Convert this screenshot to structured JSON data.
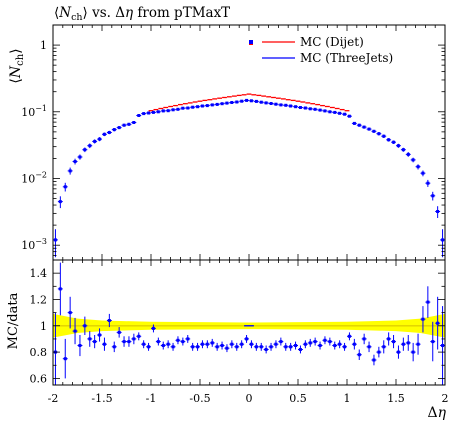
{
  "chart_data": {
    "type": "scatter",
    "title": "⟨N_ch⟩ vs. Δη from pTMaxT",
    "title_parts": {
      "prefix": "⟨",
      "var": "N",
      "sub": "ch",
      "mid": "⟩ vs. ",
      "delta_sym": "Δ",
      "eta_sym": "η",
      "suffix": " from pTMaxT"
    },
    "ylabel_parts": {
      "open": "⟨",
      "var": "N",
      "sub": "ch",
      "close": "⟩"
    },
    "xlabel_parts": {
      "delta_sym": "Δ",
      "eta_sym": "η"
    },
    "ratio_ylabel": "MC/data",
    "legend": {
      "position": "top-right",
      "entries": [
        {
          "name": "MC (Dijet)",
          "color": "#ff0000"
        },
        {
          "name": "MC (ThreeJets)",
          "color": "#0000ff"
        }
      ]
    },
    "colors": {
      "dijet": "#ff0000",
      "threejets": "#0000ff",
      "band": "#ffff00",
      "band_line": "#e0d000",
      "data": "#000000"
    },
    "x_range": [
      -2,
      2
    ],
    "y_range_log": [
      0.0006,
      2
    ],
    "y_log": true,
    "ratio_range": [
      0.55,
      1.5
    ],
    "x_ticks": [
      {
        "value": -2,
        "label": "-2"
      },
      {
        "value": -1.5,
        "label": "-1.5"
      },
      {
        "value": -1,
        "label": "-1"
      },
      {
        "value": -0.5,
        "label": "-0.5"
      },
      {
        "value": 0,
        "label": "0"
      },
      {
        "value": 0.5,
        "label": "0.5"
      },
      {
        "value": 1,
        "label": "1"
      },
      {
        "value": 1.5,
        "label": "1.5"
      },
      {
        "value": 2,
        "label": "2"
      }
    ],
    "y_ticks": [
      {
        "value": 1,
        "label": "1"
      },
      {
        "value": 0.1,
        "label": "10",
        "exp": "−1"
      },
      {
        "value": 0.01,
        "label": "10",
        "exp": "−2"
      },
      {
        "value": 0.001,
        "label": "10",
        "exp": "−3"
      }
    ],
    "ratio_ticks": [
      {
        "value": 0.6,
        "label": "0.6"
      },
      {
        "value": 0.8,
        "label": "0.8"
      },
      {
        "value": 1.0,
        "label": "1"
      },
      {
        "value": 1.2,
        "label": "1.2"
      },
      {
        "value": 1.4,
        "label": "1.4"
      }
    ],
    "dijet": {
      "x": [
        -1,
        -0.95,
        -0.9,
        -0.85,
        -0.8,
        -0.75,
        -0.7,
        -0.65,
        -0.6,
        -0.55,
        -0.5,
        -0.45,
        -0.4,
        -0.35,
        -0.3,
        -0.25,
        -0.2,
        -0.15,
        -0.1,
        -0.05,
        0,
        0.05,
        0.1,
        0.15,
        0.2,
        0.25,
        0.3,
        0.35,
        0.4,
        0.45,
        0.5,
        0.55,
        0.6,
        0.65,
        0.7,
        0.75,
        0.8,
        0.85,
        0.9,
        0.95,
        1
      ],
      "y": [
        0.104,
        0.108,
        0.112,
        0.116,
        0.12,
        0.124,
        0.128,
        0.132,
        0.136,
        0.14,
        0.144,
        0.148,
        0.152,
        0.156,
        0.16,
        0.164,
        0.168,
        0.172,
        0.176,
        0.18,
        0.184,
        0.18,
        0.176,
        0.172,
        0.168,
        0.164,
        0.16,
        0.156,
        0.152,
        0.148,
        0.144,
        0.14,
        0.136,
        0.132,
        0.128,
        0.124,
        0.12,
        0.116,
        0.112,
        0.108,
        0.104
      ]
    },
    "threejets": {
      "x": [
        -1.975,
        -1.925,
        -1.875,
        -1.825,
        -1.775,
        -1.725,
        -1.675,
        -1.625,
        -1.575,
        -1.525,
        -1.475,
        -1.425,
        -1.375,
        -1.325,
        -1.275,
        -1.225,
        -1.175,
        -1.125,
        -1.075,
        -1.025,
        -0.975,
        -0.925,
        -0.875,
        -0.825,
        -0.775,
        -0.725,
        -0.675,
        -0.625,
        -0.575,
        -0.525,
        -0.475,
        -0.425,
        -0.375,
        -0.325,
        -0.275,
        -0.225,
        -0.175,
        -0.125,
        -0.075,
        -0.025,
        0.025,
        0.075,
        0.125,
        0.175,
        0.225,
        0.275,
        0.325,
        0.375,
        0.425,
        0.475,
        0.525,
        0.575,
        0.625,
        0.675,
        0.725,
        0.775,
        0.825,
        0.875,
        0.925,
        0.975,
        1.025,
        1.075,
        1.125,
        1.175,
        1.225,
        1.275,
        1.325,
        1.375,
        1.425,
        1.475,
        1.525,
        1.575,
        1.625,
        1.675,
        1.725,
        1.775,
        1.825,
        1.875,
        1.925,
        1.975
      ],
      "y": [
        0.0012,
        0.0045,
        0.0075,
        0.013,
        0.018,
        0.021,
        0.027,
        0.031,
        0.036,
        0.039,
        0.046,
        0.049,
        0.054,
        0.058,
        0.063,
        0.065,
        0.069,
        0.088,
        0.094,
        0.096,
        0.098,
        0.1,
        0.103,
        0.104,
        0.107,
        0.109,
        0.113,
        0.114,
        0.117,
        0.119,
        0.122,
        0.124,
        0.127,
        0.129,
        0.132,
        0.135,
        0.138,
        0.14,
        0.144,
        0.148,
        0.146,
        0.143,
        0.139,
        0.136,
        0.133,
        0.13,
        0.127,
        0.125,
        0.122,
        0.119,
        0.116,
        0.114,
        0.111,
        0.109,
        0.106,
        0.103,
        0.1,
        0.098,
        0.095,
        0.092,
        0.086,
        0.067,
        0.063,
        0.059,
        0.055,
        0.051,
        0.047,
        0.043,
        0.038,
        0.035,
        0.031,
        0.027,
        0.023,
        0.019,
        0.015,
        0.012,
        0.0085,
        0.0055,
        0.0032,
        0.0012
      ],
      "yerr_frac": [
        0.45,
        0.2,
        0.15,
        0.12,
        0.1,
        0.09,
        0.08,
        0.08,
        0.07,
        0.07,
        0.06,
        0.06,
        0.06,
        0.05,
        0.05,
        0.05,
        0.05,
        0.04,
        0.04,
        0.04,
        0.04,
        0.04,
        0.04,
        0.04,
        0.04,
        0.04,
        0.04,
        0.04,
        0.04,
        0.04,
        0.04,
        0.04,
        0.04,
        0.04,
        0.04,
        0.04,
        0.04,
        0.04,
        0.04,
        0.04,
        0.04,
        0.04,
        0.04,
        0.04,
        0.04,
        0.04,
        0.04,
        0.04,
        0.04,
        0.04,
        0.04,
        0.04,
        0.04,
        0.04,
        0.04,
        0.04,
        0.04,
        0.04,
        0.04,
        0.04,
        0.04,
        0.05,
        0.05,
        0.05,
        0.05,
        0.05,
        0.06,
        0.06,
        0.06,
        0.06,
        0.07,
        0.07,
        0.08,
        0.08,
        0.09,
        0.1,
        0.12,
        0.15,
        0.2,
        0.45
      ]
    },
    "ratio_threejets": {
      "y": [
        0.8,
        1.28,
        0.75,
        1.1,
        0.96,
        0.85,
        1.0,
        0.9,
        0.88,
        0.93,
        0.86,
        1.04,
        0.84,
        0.95,
        0.88,
        0.88,
        0.9,
        0.92,
        0.86,
        0.84,
        0.98,
        0.88,
        0.85,
        0.86,
        0.84,
        0.89,
        0.88,
        0.9,
        0.84,
        0.84,
        0.86,
        0.86,
        0.87,
        0.84,
        0.85,
        0.83,
        0.86,
        0.84,
        0.86,
        0.9,
        0.86,
        0.84,
        0.84,
        0.82,
        0.84,
        0.86,
        0.88,
        0.84,
        0.84,
        0.85,
        0.82,
        0.86,
        0.87,
        0.88,
        0.85,
        0.89,
        0.88,
        0.85,
        0.86,
        0.84,
        0.92,
        0.86,
        0.78,
        0.9,
        0.84,
        0.74,
        0.8,
        0.84,
        0.9,
        0.88,
        0.8,
        0.86,
        0.87,
        0.8,
        0.86,
        1.05,
        1.18,
        0.88,
        1.02,
        0.85
      ],
      "yerr": [
        0.3,
        0.2,
        0.15,
        0.12,
        0.1,
        0.08,
        0.07,
        0.06,
        0.05,
        0.05,
        0.05,
        0.05,
        0.04,
        0.04,
        0.04,
        0.04,
        0.04,
        0.03,
        0.03,
        0.03,
        0.03,
        0.03,
        0.03,
        0.03,
        0.03,
        0.03,
        0.03,
        0.03,
        0.03,
        0.03,
        0.03,
        0.03,
        0.03,
        0.03,
        0.03,
        0.03,
        0.03,
        0.03,
        0.03,
        0.03,
        0.03,
        0.03,
        0.03,
        0.03,
        0.03,
        0.03,
        0.03,
        0.03,
        0.03,
        0.03,
        0.03,
        0.03,
        0.03,
        0.03,
        0.03,
        0.03,
        0.03,
        0.03,
        0.03,
        0.03,
        0.03,
        0.04,
        0.04,
        0.04,
        0.04,
        0.04,
        0.04,
        0.05,
        0.05,
        0.05,
        0.05,
        0.05,
        0.06,
        0.07,
        0.08,
        0.1,
        0.12,
        0.15,
        0.2,
        0.3
      ]
    },
    "ratio_dijet": {
      "x": [
        -0.025,
        0.025
      ],
      "y": [
        1.0,
        1.0
      ]
    },
    "band": {
      "x": [
        -2,
        -1.75,
        -1.5,
        -1,
        0,
        1,
        1.5,
        1.75,
        2
      ],
      "half_width": [
        0.09,
        0.055,
        0.04,
        0.03,
        0.025,
        0.03,
        0.04,
        0.055,
        0.09
      ]
    }
  }
}
